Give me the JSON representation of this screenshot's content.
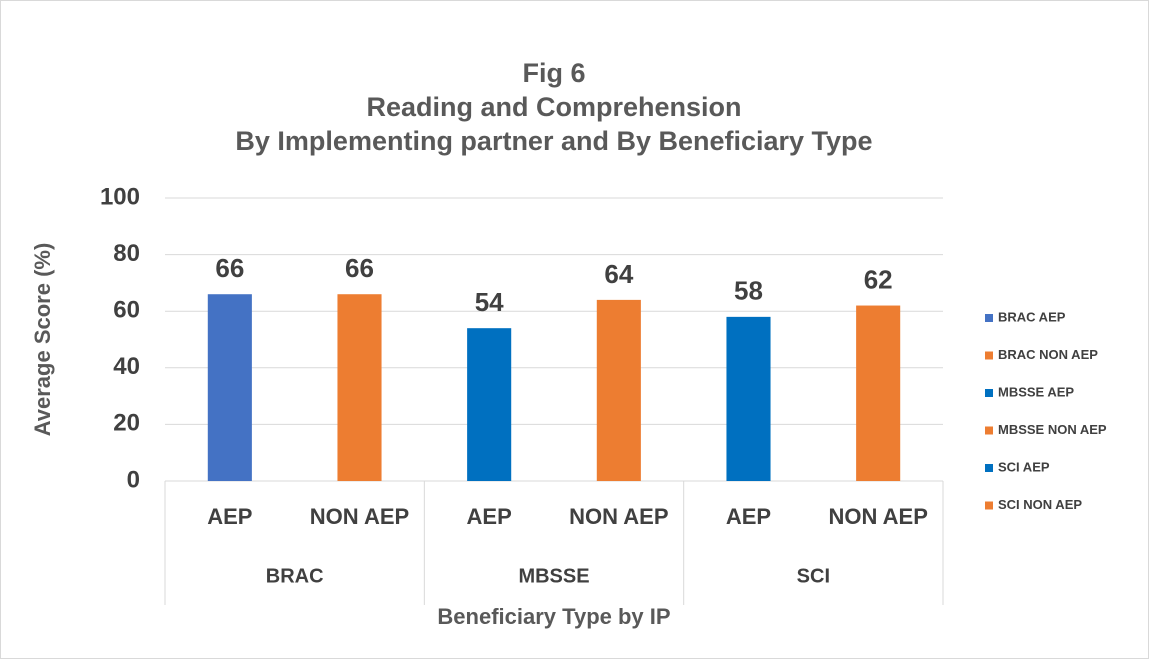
{
  "chart_data": {
    "type": "bar",
    "title": [
      "Fig 6",
      "Reading and Comprehension",
      "By Implementing partner and By Beneficiary Type"
    ],
    "y_label": "Average Score (%)",
    "x_label": "Beneficiary Type by IP",
    "categories": [
      "AEP",
      "NON AEP",
      "AEP",
      "NON AEP",
      "AEP",
      "NON AEP"
    ],
    "groups": [
      "BRAC",
      "MBSSE",
      "SCI"
    ],
    "series": [
      {
        "name": "BRAC AEP",
        "color": "#4472C4",
        "values": [
          66,
          null,
          null,
          null,
          null,
          null
        ]
      },
      {
        "name": "BRAC NON AEP",
        "color": "#ED7D31",
        "values": [
          null,
          66,
          null,
          null,
          null,
          null
        ]
      },
      {
        "name": "MBSSE AEP",
        "color": "#0070C0",
        "values": [
          null,
          null,
          54,
          null,
          null,
          null
        ]
      },
      {
        "name": "MBSSE NON AEP",
        "color": "#ED7D31",
        "values": [
          null,
          null,
          null,
          64,
          null,
          null
        ]
      },
      {
        "name": "SCI AEP",
        "color": "#0070C0",
        "values": [
          null,
          null,
          null,
          null,
          58,
          null
        ]
      },
      {
        "name": "SCI NON AEP",
        "color": "#ED7D31",
        "values": [
          null,
          null,
          null,
          null,
          null,
          62
        ]
      }
    ],
    "ylim": [
      0,
      100
    ],
    "yticks": [
      0,
      20,
      40,
      60,
      80,
      100
    ],
    "grid": true,
    "legend": "right"
  }
}
